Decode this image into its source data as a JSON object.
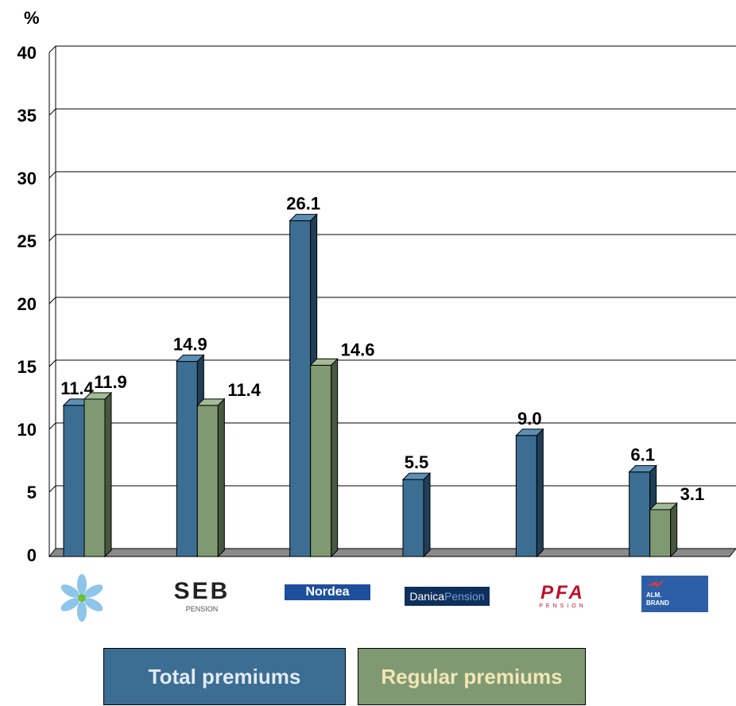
{
  "chart_data": {
    "type": "bar",
    "unit_label": "%",
    "y_ticks": [
      "0",
      "5",
      "10",
      "15",
      "20",
      "25",
      "30",
      "35",
      "40"
    ],
    "ylim": [
      0,
      40
    ],
    "grid": true,
    "categories": [
      "Tryg",
      "SEB Pension",
      "Nordea",
      "Danica Pension",
      "PFA Pension",
      "Alm. Brand"
    ],
    "series": [
      {
        "name": "Total premiums",
        "color": "#3c6e93",
        "side": "#1f3f57",
        "top": "#5b8fb5",
        "values": [
          11.4,
          14.9,
          26.1,
          5.5,
          9.0,
          6.1
        ],
        "labels": [
          "11.4",
          "14.9",
          "26.1",
          "5.5",
          "9.0",
          "6.1"
        ]
      },
      {
        "name": "Regular premiums",
        "color": "#7f9a72",
        "side": "#48583f",
        "top": "#a3bb96",
        "values": [
          11.9,
          11.4,
          14.6,
          null,
          null,
          3.1
        ],
        "labels": [
          "11.9",
          "11.4",
          "14.6",
          "",
          "",
          "3.1"
        ]
      }
    ]
  },
  "logos": {
    "seb": "SEB",
    "seb_sub": "PENSION",
    "nordea": "Nordea",
    "danica_a": "Danica",
    "danica_b": "Pension",
    "pfa": "PFA",
    "pfa_sub": "PENSION",
    "almbrand_a": "ALM.",
    "almbrand_b": "BRAND"
  },
  "legend": {
    "total_label": "Total premiums",
    "regular_label": "Regular premiums",
    "total_color": "#3c6e93",
    "regular_color": "#7f9a72"
  }
}
